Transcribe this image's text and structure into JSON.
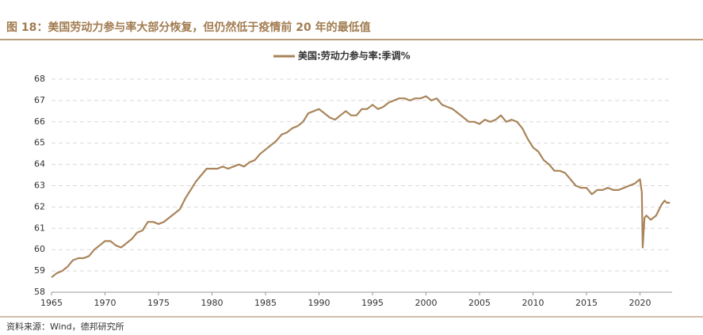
{
  "chart_data": {
    "type": "line",
    "title": "图 18：美国劳动力参与率大部分恢复，但仍然低于疫情前 20 年的最低值",
    "source": "资料来源：Wind，德邦研究所",
    "x": [
      1965,
      1965.5,
      1966,
      1966.5,
      1967,
      1967.5,
      1968,
      1968.5,
      1969,
      1969.5,
      1970,
      1970.5,
      1971,
      1971.5,
      1972,
      1972.5,
      1973,
      1973.5,
      1974,
      1974.5,
      1975,
      1975.5,
      1976,
      1976.5,
      1977,
      1977.5,
      1978,
      1978.5,
      1979,
      1979.5,
      1980,
      1980.5,
      1981,
      1981.5,
      1982,
      1982.5,
      1983,
      1983.5,
      1984,
      1984.5,
      1985,
      1985.5,
      1986,
      1986.5,
      1987,
      1987.5,
      1988,
      1988.5,
      1989,
      1989.5,
      1990,
      1990.5,
      1991,
      1991.5,
      1992,
      1992.5,
      1993,
      1993.5,
      1994,
      1994.5,
      1995,
      1995.5,
      1996,
      1996.5,
      1997,
      1997.5,
      1998,
      1998.5,
      1999,
      1999.5,
      2000,
      2000.5,
      2001,
      2001.5,
      2002,
      2002.5,
      2003,
      2003.5,
      2004,
      2004.5,
      2005,
      2005.5,
      2006,
      2006.5,
      2007,
      2007.5,
      2008,
      2008.5,
      2009,
      2009.5,
      2010,
      2010.5,
      2011,
      2011.5,
      2012,
      2012.5,
      2013,
      2013.5,
      2014,
      2014.5,
      2015,
      2015.5,
      2016,
      2016.5,
      2017,
      2017.5,
      2018,
      2018.5,
      2019,
      2019.5,
      2020,
      2020.17,
      2020.25,
      2020.42,
      2020.6,
      2021,
      2021.5,
      2022,
      2022.3,
      2022.5,
      2022.8
    ],
    "series": [
      {
        "name": "美国:劳动力参与率:季调%",
        "color": "#a9845a",
        "values": [
          58.7,
          58.9,
          59.0,
          59.2,
          59.5,
          59.6,
          59.6,
          59.7,
          60.0,
          60.2,
          60.4,
          60.4,
          60.2,
          60.1,
          60.3,
          60.5,
          60.8,
          60.9,
          61.3,
          61.3,
          61.2,
          61.3,
          61.5,
          61.7,
          61.9,
          62.4,
          62.8,
          63.2,
          63.5,
          63.8,
          63.8,
          63.8,
          63.9,
          63.8,
          63.9,
          64.0,
          63.9,
          64.1,
          64.2,
          64.5,
          64.7,
          64.9,
          65.1,
          65.4,
          65.5,
          65.7,
          65.8,
          66.0,
          66.4,
          66.5,
          66.6,
          66.4,
          66.2,
          66.1,
          66.3,
          66.5,
          66.3,
          66.3,
          66.6,
          66.6,
          66.8,
          66.6,
          66.7,
          66.9,
          67.0,
          67.1,
          67.1,
          67.0,
          67.1,
          67.1,
          67.2,
          67.0,
          67.1,
          66.8,
          66.7,
          66.6,
          66.4,
          66.2,
          66.0,
          66.0,
          65.9,
          66.1,
          66.0,
          66.1,
          66.3,
          66.0,
          66.1,
          66.0,
          65.7,
          65.2,
          64.8,
          64.6,
          64.2,
          64.0,
          63.7,
          63.7,
          63.6,
          63.3,
          63.0,
          62.9,
          62.9,
          62.6,
          62.8,
          62.8,
          62.9,
          62.8,
          62.8,
          62.9,
          63.0,
          63.1,
          63.3,
          62.7,
          60.1,
          61.5,
          61.6,
          61.4,
          61.6,
          62.1,
          62.3,
          62.2,
          62.2
        ]
      }
    ],
    "xlim": [
      1965,
      2023
    ],
    "xticks": [
      1965,
      1970,
      1975,
      1980,
      1985,
      1990,
      1995,
      2000,
      2005,
      2010,
      2015,
      2020
    ],
    "ylim": [
      58,
      68
    ],
    "yticks": [
      58,
      59,
      60,
      61,
      62,
      63,
      64,
      65,
      66,
      67,
      68
    ],
    "grid": true
  }
}
